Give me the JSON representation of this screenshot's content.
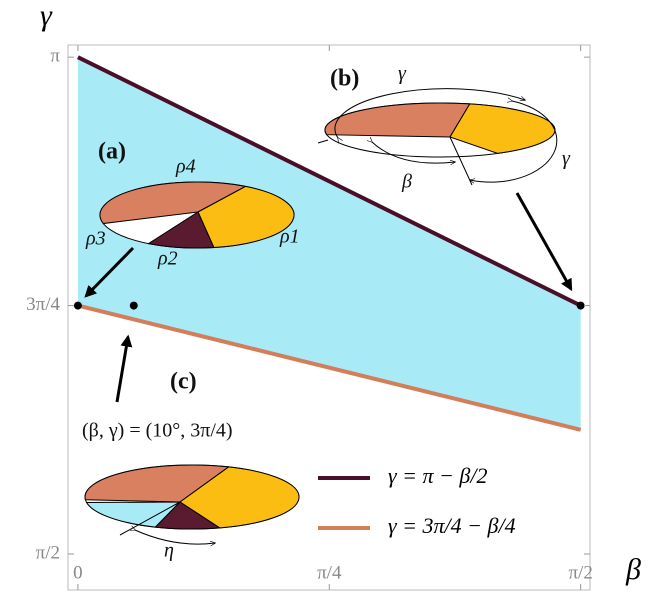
{
  "chart_data": {
    "type": "line",
    "x_label": "β",
    "y_label": "γ",
    "x": [
      0,
      1.5708
    ],
    "series": [
      {
        "name": "γ = π − β/2",
        "color": "#4a0f28",
        "values": [
          3.1416,
          2.3562
        ]
      },
      {
        "name": "γ = 3π/4 − β/4",
        "color": "#d47d58",
        "values": [
          2.3562,
          1.9635
        ]
      }
    ],
    "fill_color": "#a8ebf6",
    "points": {
      "x": [
        0,
        0.1745,
        1.5708
      ],
      "y": [
        2.3562,
        2.3562,
        2.3562
      ]
    },
    "xlim": [
      -0.031,
      1.6
    ],
    "ylim": [
      1.457,
      3.18
    ],
    "xticks": [
      0,
      {
        "value": 0.7854,
        "label": "π/4"
      },
      {
        "value": 1.5708,
        "label": "π/2"
      }
    ],
    "yticks": [
      {
        "value": 1.5708,
        "label": "π/2"
      },
      {
        "value": 2.3562,
        "label": "3π/4"
      },
      {
        "value": 3.1416,
        "label": "π"
      }
    ],
    "annotations": [
      "(a)",
      "ρ4",
      "ρ3",
      "ρ2",
      "ρ1",
      "(b)",
      "γ",
      "γ",
      "β",
      "(c)",
      "η",
      "(β, γ) = (10°, 3π/4)"
    ]
  }
}
